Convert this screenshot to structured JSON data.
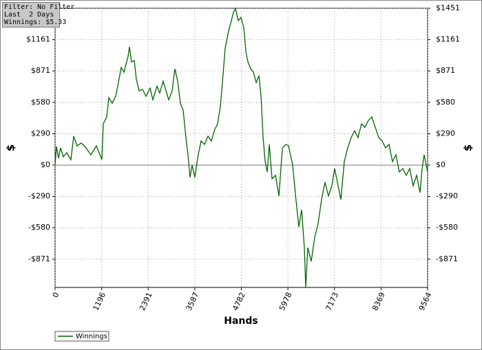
{
  "chart_data": {
    "type": "line",
    "annotations": [
      "Filter: No Filter",
      "Last  2 Days",
      "Winnings: $5.33"
    ],
    "xlabel": "Hands",
    "ylabel": "$",
    "y2label": "$",
    "xlim": [
      0,
      9564
    ],
    "xticks": [
      0,
      1196,
      2391,
      3587,
      4782,
      5978,
      7173,
      8369,
      9564
    ],
    "ylim": [
      -1132,
      1451
    ],
    "yticks": [
      {
        "value": 1451,
        "label": "$1451"
      },
      {
        "value": 1161,
        "label": "$1161"
      },
      {
        "value": 871,
        "label": "$871"
      },
      {
        "value": 580,
        "label": "$580"
      },
      {
        "value": 290,
        "label": "$290"
      },
      {
        "value": 0,
        "label": "$0"
      },
      {
        "value": -290,
        "label": "-$290"
      },
      {
        "value": -580,
        "label": "-$580"
      },
      {
        "value": -871,
        "label": "-$871"
      }
    ],
    "grid": true,
    "legend": "bottom-left",
    "x": [
      0,
      35,
      88,
      141,
      212,
      300,
      407,
      477,
      566,
      672,
      796,
      919,
      1061,
      1202,
      1237,
      1326,
      1379,
      1467,
      1556,
      1626,
      1697,
      1768,
      1874,
      1909,
      1962,
      2033,
      2086,
      2157,
      2245,
      2334,
      2440,
      2510,
      2617,
      2687,
      2776,
      2829,
      2917,
      3006,
      3076,
      3147,
      3218,
      3289,
      3359,
      3412,
      3465,
      3518,
      3589,
      3660,
      3748,
      3836,
      3925,
      4013,
      4101,
      4172,
      4243,
      4296,
      4367,
      4455,
      4526,
      4579,
      4632,
      4703,
      4774,
      4845,
      4898,
      4951,
      5022,
      5093,
      5163,
      5234,
      5287,
      5340,
      5393,
      5446,
      5499,
      5570,
      5658,
      5747,
      5835,
      5924,
      5995,
      6099,
      6187,
      6258,
      6329,
      6400,
      6435,
      6488,
      6576,
      6665,
      6753,
      6842,
      6930,
      7018,
      7107,
      7178,
      7249,
      7337,
      7425,
      7514,
      7602,
      7690,
      7779,
      7867,
      7956,
      8044,
      8132,
      8221,
      8309,
      8397,
      8486,
      8574,
      8663,
      8751,
      8840,
      8928,
      9017,
      9105,
      9193,
      9282,
      9370,
      9423,
      9476,
      9529,
      9564
    ],
    "series": [
      {
        "name": "Winnings",
        "color": "#006400",
        "values": [
          0,
          172,
          64,
          159,
          76,
          115,
          51,
          267,
          178,
          204,
          159,
          95,
          178,
          51,
          382,
          445,
          623,
          572,
          636,
          763,
          903,
          859,
          1005,
          1094,
          954,
          967,
          795,
          687,
          700,
          636,
          712,
          604,
          731,
          668,
          776,
          712,
          604,
          687,
          890,
          776,
          572,
          509,
          254,
          95,
          -114,
          0,
          -114,
          64,
          223,
          191,
          267,
          223,
          331,
          382,
          541,
          763,
          1081,
          1240,
          1336,
          1412,
          1450,
          1336,
          1367,
          1272,
          1049,
          954,
          890,
          859,
          763,
          827,
          636,
          254,
          32,
          -64,
          191,
          -127,
          -95,
          -286,
          159,
          191,
          178,
          0,
          -331,
          -572,
          -413,
          -763,
          -1130,
          -763,
          -890,
          -668,
          -541,
          -318,
          -159,
          -286,
          -191,
          -32,
          -159,
          -318,
          32,
          159,
          254,
          318,
          254,
          382,
          350,
          413,
          445,
          350,
          254,
          223,
          159,
          191,
          32,
          95,
          -64,
          -32,
          -95,
          -32,
          -191,
          -95,
          -254,
          -32,
          95,
          0,
          -64
        ]
      }
    ]
  }
}
